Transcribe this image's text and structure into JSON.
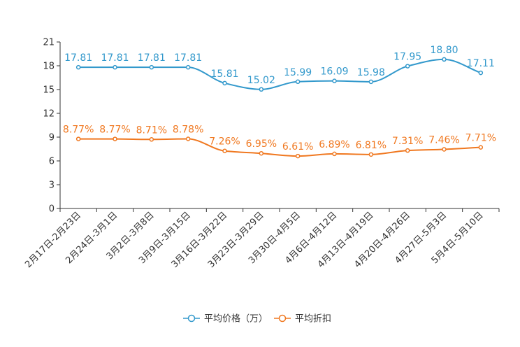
{
  "chart_data": {
    "type": "line",
    "categories": [
      "2月17日-2月23日",
      "2月24日-3月1日",
      "3月2日-3月8日",
      "3月9日-3月15日",
      "3月16日-3月22日",
      "3月23日-3月29日",
      "3月30日-4月5日",
      "4月6日-4月12日",
      "4月13日-4月19日",
      "4月20日-4月26日",
      "4月27日-5月3日",
      "5月4日-5月10日"
    ],
    "y_ticks": [
      0,
      3,
      6,
      9,
      12,
      15,
      18,
      21
    ],
    "ylim": [
      0,
      21
    ],
    "series": [
      {
        "name": "平均价格（万）",
        "color": "#3399cc",
        "values": [
          17.81,
          17.81,
          17.81,
          17.81,
          15.81,
          15.02,
          15.99,
          16.09,
          15.98,
          17.95,
          18.8,
          17.11
        ],
        "labels": [
          "17.81",
          "17.81",
          "17.81",
          "17.81",
          "15.81",
          "15.02",
          "15.99",
          "16.09",
          "15.98",
          "17.95",
          "18.80",
          "17.11"
        ]
      },
      {
        "name": "平均折扣",
        "color": "#f07820",
        "values": [
          8.77,
          8.77,
          8.71,
          8.78,
          7.26,
          6.95,
          6.61,
          6.89,
          6.81,
          7.31,
          7.46,
          7.71
        ],
        "labels": [
          "8.77%",
          "8.77%",
          "8.71%",
          "8.78%",
          "7.26%",
          "6.95%",
          "6.61%",
          "6.89%",
          "6.81%",
          "7.31%",
          "7.46%",
          "7.71%"
        ]
      }
    ],
    "legend_position": "bottom-center",
    "grid": false
  }
}
